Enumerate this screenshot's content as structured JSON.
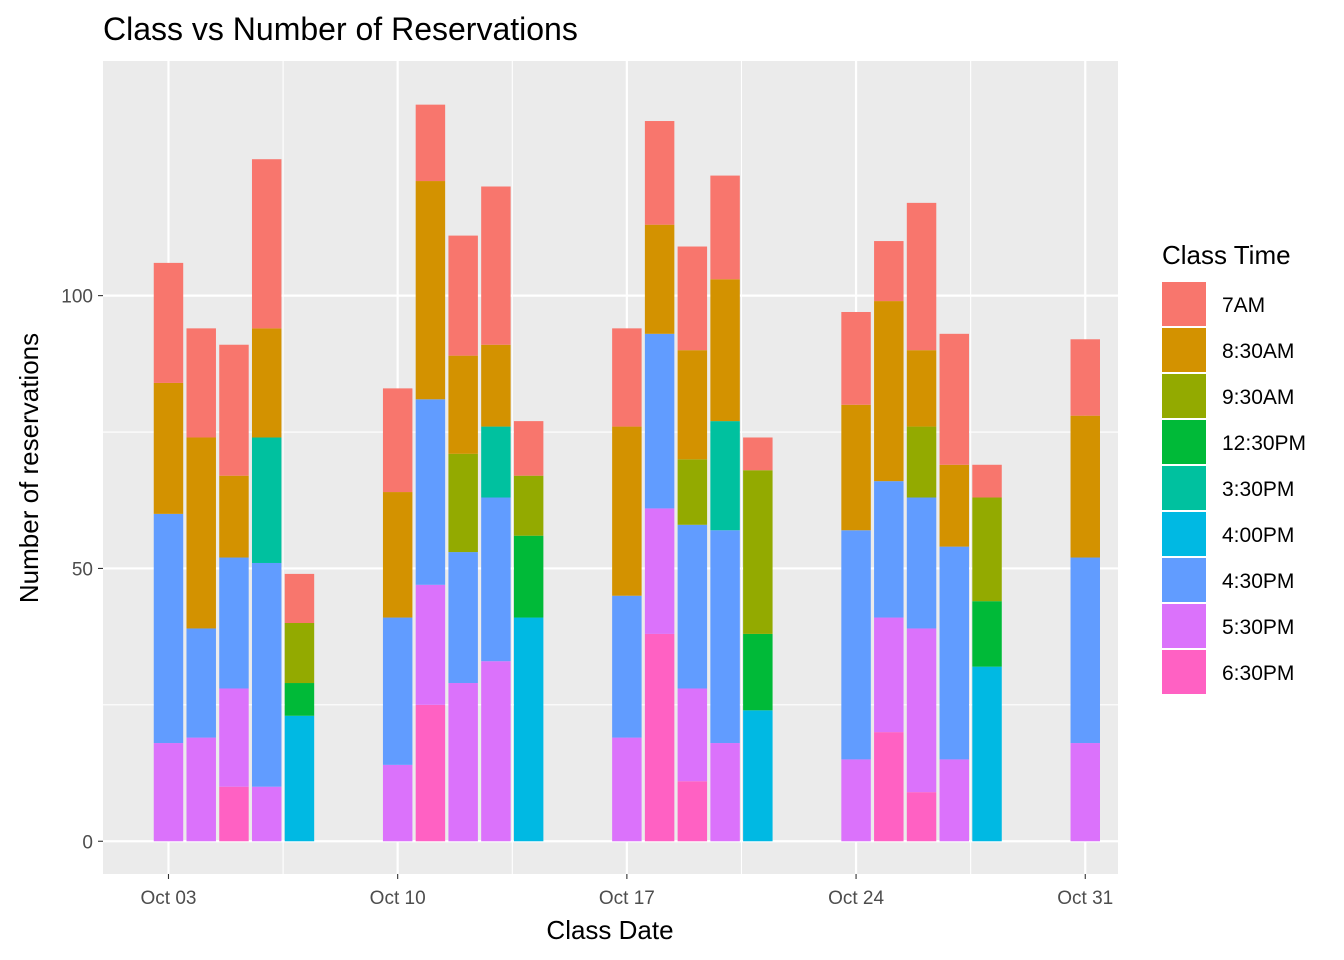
{
  "chart_data": {
    "type": "bar",
    "stacked": true,
    "title": "Class vs Number of Reservations",
    "xlabel": "Class Date",
    "ylabel": "Number of reservations",
    "ylim": [
      -6,
      143
    ],
    "y_ticks": [
      0,
      50,
      100
    ],
    "x_axis": {
      "start_date": "2023-10-01",
      "end_date": "2023-11-01",
      "tick_dates": [
        "2023-10-03",
        "2023-10-10",
        "2023-10-17",
        "2023-10-24",
        "2023-10-31"
      ],
      "tick_labels": [
        "Oct 03",
        "Oct 10",
        "Oct 17",
        "Oct 24",
        "Oct 31"
      ]
    },
    "grid": true,
    "legend": {
      "title": "Class Time",
      "position": "right"
    },
    "series": [
      {
        "name": "7AM",
        "color": "#F8766D"
      },
      {
        "name": "8:30AM",
        "color": "#D39200"
      },
      {
        "name": "9:30AM",
        "color": "#93AA00"
      },
      {
        "name": "12:30PM",
        "color": "#00BA38"
      },
      {
        "name": "3:30PM",
        "color": "#00C19F"
      },
      {
        "name": "4:00PM",
        "color": "#00B9E3"
      },
      {
        "name": "4:30PM",
        "color": "#619CFF"
      },
      {
        "name": "5:30PM",
        "color": "#DB72FB"
      },
      {
        "name": "6:30PM",
        "color": "#FF61C3"
      }
    ],
    "bars": [
      {
        "date": "2023-10-03",
        "values": {
          "7AM": 22,
          "8:30AM": 24,
          "4:30PM": 42,
          "5:30PM": 18
        }
      },
      {
        "date": "2023-10-04",
        "values": {
          "7AM": 20,
          "8:30AM": 35,
          "4:30PM": 20,
          "5:30PM": 19
        }
      },
      {
        "date": "2023-10-05",
        "values": {
          "7AM": 24,
          "8:30AM": 15,
          "4:30PM": 24,
          "5:30PM": 18,
          "6:30PM": 10
        }
      },
      {
        "date": "2023-10-06",
        "values": {
          "7AM": 31,
          "8:30AM": 20,
          "3:30PM": 23,
          "4:30PM": 41,
          "5:30PM": 10
        }
      },
      {
        "date": "2023-10-07",
        "values": {
          "7AM": 9,
          "9:30AM": 11,
          "12:30PM": 6,
          "4:00PM": 23
        }
      },
      {
        "date": "2023-10-10",
        "values": {
          "7AM": 19,
          "8:30AM": 23,
          "4:30PM": 27,
          "5:30PM": 14
        }
      },
      {
        "date": "2023-10-11",
        "values": {
          "7AM": 14,
          "8:30AM": 40,
          "4:30PM": 34,
          "5:30PM": 22,
          "6:30PM": 25
        }
      },
      {
        "date": "2023-10-12",
        "values": {
          "7AM": 22,
          "8:30AM": 18,
          "9:30AM": 18,
          "4:30PM": 24,
          "5:30PM": 29
        }
      },
      {
        "date": "2023-10-13",
        "values": {
          "7AM": 29,
          "8:30AM": 15,
          "3:30PM": 13,
          "4:30PM": 30,
          "5:30PM": 33
        }
      },
      {
        "date": "2023-10-14",
        "values": {
          "7AM": 10,
          "9:30AM": 11,
          "12:30PM": 15,
          "4:00PM": 41
        }
      },
      {
        "date": "2023-10-17",
        "values": {
          "7AM": 18,
          "8:30AM": 31,
          "4:30PM": 26,
          "5:30PM": 19
        }
      },
      {
        "date": "2023-10-18",
        "values": {
          "7AM": 19,
          "8:30AM": 20,
          "4:30PM": 32,
          "5:30PM": 23,
          "6:30PM": 38
        }
      },
      {
        "date": "2023-10-19",
        "values": {
          "7AM": 19,
          "8:30AM": 20,
          "9:30AM": 12,
          "4:30PM": 30,
          "5:30PM": 17,
          "6:30PM": 11
        }
      },
      {
        "date": "2023-10-20",
        "values": {
          "7AM": 19,
          "8:30AM": 26,
          "3:30PM": 20,
          "4:30PM": 39,
          "5:30PM": 18
        }
      },
      {
        "date": "2023-10-21",
        "values": {
          "7AM": 6,
          "9:30AM": 30,
          "12:30PM": 14,
          "4:00PM": 24
        }
      },
      {
        "date": "2023-10-24",
        "values": {
          "7AM": 17,
          "8:30AM": 23,
          "4:30PM": 42,
          "5:30PM": 15
        }
      },
      {
        "date": "2023-10-25",
        "values": {
          "7AM": 11,
          "8:30AM": 33,
          "4:30PM": 25,
          "5:30PM": 21,
          "6:30PM": 20
        }
      },
      {
        "date": "2023-10-26",
        "values": {
          "7AM": 27,
          "8:30AM": 14,
          "9:30AM": 13,
          "4:30PM": 24,
          "5:30PM": 30,
          "6:30PM": 9
        }
      },
      {
        "date": "2023-10-27",
        "values": {
          "7AM": 24,
          "8:30AM": 15,
          "4:30PM": 39,
          "5:30PM": 15
        }
      },
      {
        "date": "2023-10-28",
        "values": {
          "7AM": 6,
          "9:30AM": 19,
          "12:30PM": 12,
          "4:00PM": 32
        }
      },
      {
        "date": "2023-10-31",
        "values": {
          "7AM": 14,
          "8:30AM": 26,
          "4:30PM": 34,
          "5:30PM": 18
        }
      }
    ]
  }
}
